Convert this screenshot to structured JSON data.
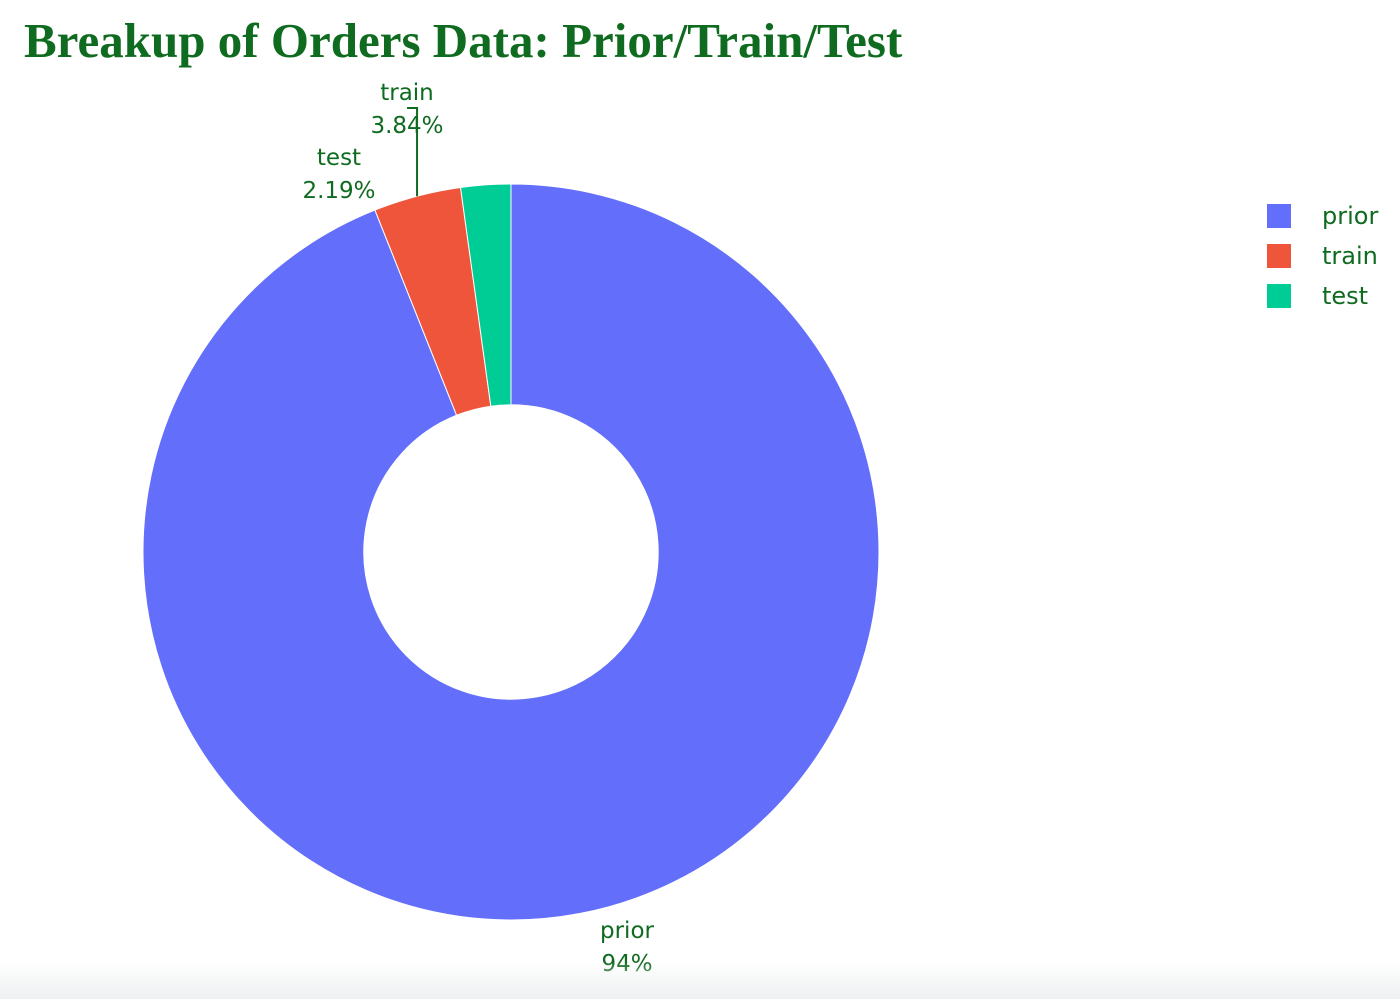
{
  "chart_data": {
    "type": "pie",
    "hole": 0.4,
    "title": "Breakup of Orders Data: Prior/Train/Test",
    "labels": [
      "prior",
      "train",
      "test"
    ],
    "values": [
      94,
      3.84,
      2.19
    ],
    "slice_labels": [
      {
        "name": "prior",
        "percent": "94%"
      },
      {
        "name": "train",
        "percent": "3.84%"
      },
      {
        "name": "test",
        "percent": "2.19%"
      }
    ],
    "colors": [
      "#636efa",
      "#ef553b",
      "#00cc96"
    ],
    "legend_placement": "top-right"
  },
  "style": {
    "title_color": "#0f6b1f",
    "label_color": "#0f6b1f"
  }
}
